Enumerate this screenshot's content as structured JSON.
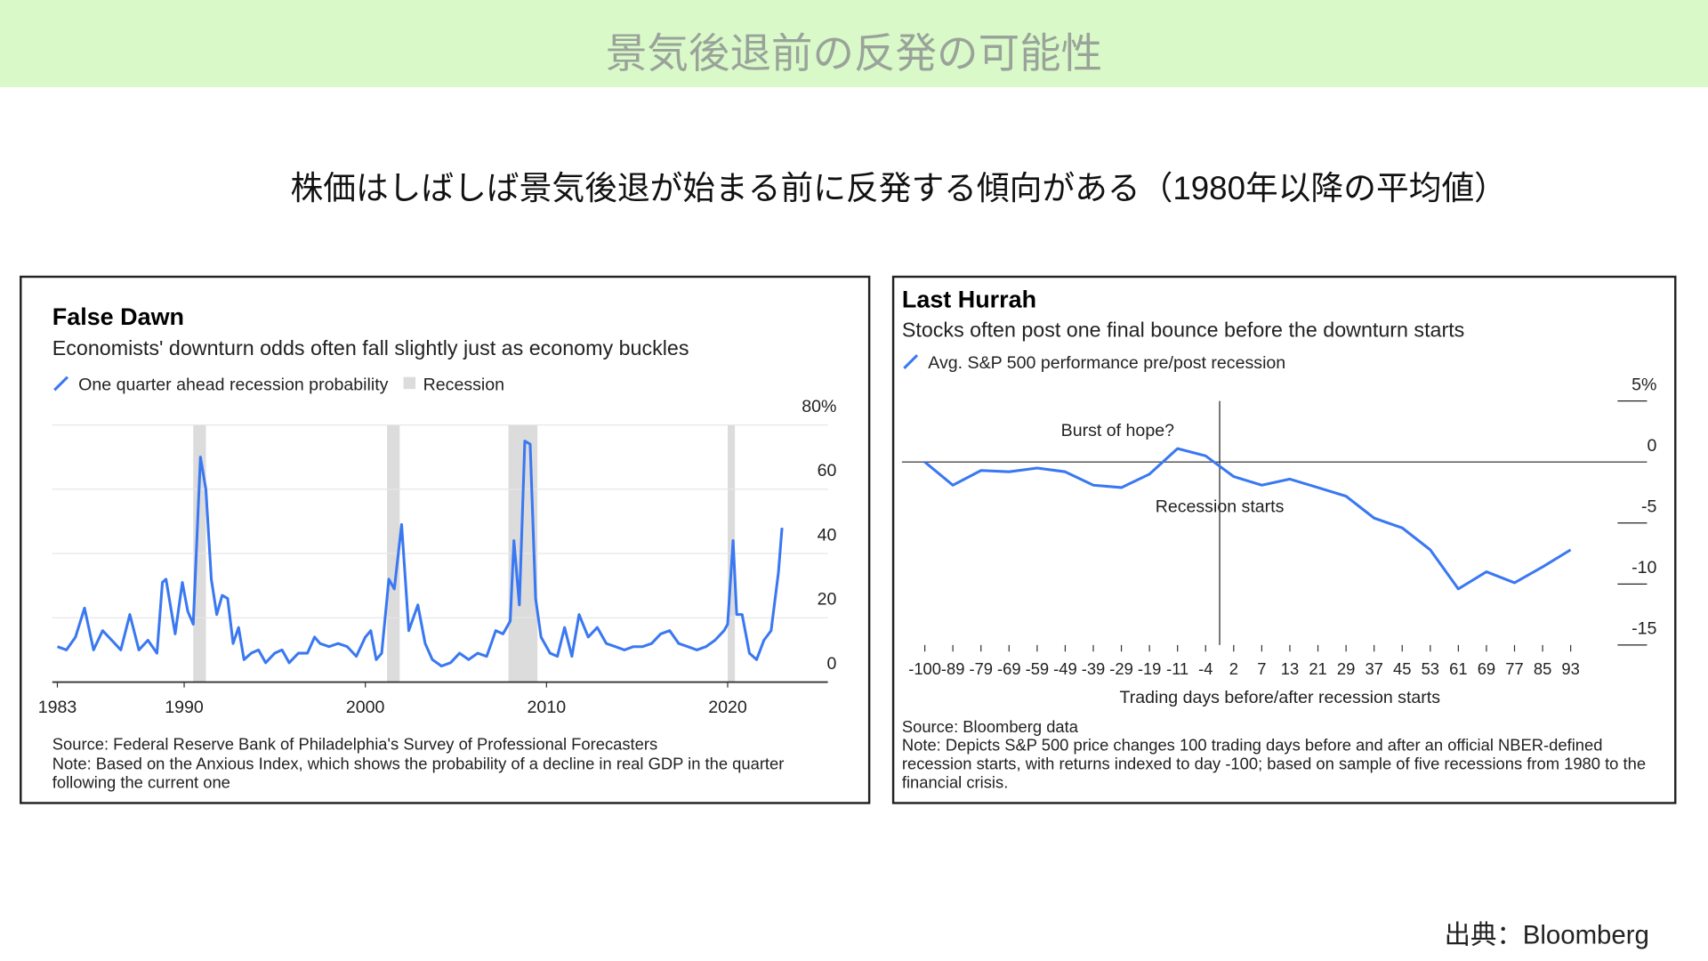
{
  "header": {
    "title": "景気後退前の反発の可能性",
    "subtitle": "株価はしばしば景気後退が始まる前に反発する傾向がある（1980年以降の平均値）",
    "credit": "出典：Bloomberg"
  },
  "chart_data": [
    {
      "type": "line",
      "title": "False Dawn",
      "subtitle": "Economists' downturn odds often fall slightly just as economy buckles",
      "source": "Source: Federal Reserve Bank of Philadelphia's Survey of Professional Forecasters",
      "note": "Note: Based on the Anxious Index, which shows the probability of a decline in real GDP in the quarter following the current one",
      "x": [
        1983,
        1983.5,
        1984,
        1984.5,
        1985,
        1985.5,
        1986,
        1986.5,
        1987,
        1987.5,
        1988,
        1988.5,
        1988.8,
        1989,
        1989.5,
        1989.9,
        1990.2,
        1990.5,
        1990.9,
        1991.2,
        1991.5,
        1991.8,
        1992.1,
        1992.4,
        1992.7,
        1993,
        1993.3,
        1993.7,
        1994.1,
        1994.5,
        1995,
        1995.4,
        1995.8,
        1996.3,
        1996.8,
        1997.2,
        1997.5,
        1998,
        1998.5,
        1999,
        1999.5,
        2000,
        2000.3,
        2000.6,
        2000.9,
        2001.3,
        2001.6,
        2002,
        2002.4,
        2002.9,
        2003.3,
        2003.7,
        2004.2,
        2004.7,
        2005.2,
        2005.7,
        2006.2,
        2006.7,
        2007.2,
        2007.6,
        2008,
        2008.2,
        2008.5,
        2008.8,
        2009.1,
        2009.4,
        2009.7,
        2010.2,
        2010.6,
        2011,
        2011.4,
        2011.8,
        2012.3,
        2012.8,
        2013.3,
        2013.8,
        2014.3,
        2014.8,
        2015.3,
        2015.8,
        2016.3,
        2016.8,
        2017.3,
        2017.8,
        2018.3,
        2018.8,
        2019.3,
        2019.8,
        2020,
        2020.3,
        2020.5,
        2020.8,
        2021.2,
        2021.6,
        2022,
        2022.4,
        2022.8,
        2023
      ],
      "series": [
        {
          "name": "One quarter ahead recession probability",
          "color": "#3a78f2",
          "values": [
            11,
            10,
            14,
            23,
            10,
            16,
            13,
            10,
            21,
            10,
            13,
            9,
            31,
            32,
            15,
            31,
            22,
            18,
            70,
            60,
            32,
            21,
            27,
            26,
            12,
            17,
            7,
            9,
            10,
            6,
            9,
            10,
            6,
            9,
            9,
            14,
            12,
            11,
            12,
            11,
            8,
            14,
            16,
            7,
            9,
            32,
            29,
            49,
            16,
            24,
            12,
            7,
            5,
            6,
            9,
            7,
            9,
            8,
            16,
            15,
            19,
            44,
            24,
            75,
            74,
            26,
            14,
            9,
            8,
            17,
            8,
            21,
            14,
            17,
            12,
            11,
            10,
            11,
            11,
            12,
            15,
            16,
            12,
            11,
            10,
            11,
            13,
            16,
            18,
            44,
            21,
            21,
            9,
            7,
            13,
            16,
            34,
            48
          ]
        }
      ],
      "recessions": {
        "name": "Recession",
        "color": "#dcdcdc",
        "spans": [
          [
            1990.5,
            1991.2
          ],
          [
            2001.2,
            2001.9
          ],
          [
            2007.9,
            2009.5
          ],
          [
            2020,
            2020.4
          ]
        ]
      },
      "xlim": [
        1982.72,
        2025.53
      ],
      "xticks": [
        1983,
        1990,
        2000,
        2010,
        2020
      ],
      "ylim": [
        0,
        80
      ],
      "yticks": [
        0,
        20,
        40,
        60,
        {
          "value": 80,
          "label": "80%"
        }
      ],
      "grid": true
    },
    {
      "type": "line",
      "title": "Last Hurrah",
      "subtitle": "Stocks often post one final bounce before the downturn starts",
      "source": "Source: Bloomberg data",
      "note": "Note: Depicts S&P 500 price changes 100 trading days before and after an official NBER-defined recession starts, with returns indexed to day -100; based on sample of five recessions from 1980 to the financial crisis.",
      "xlabel": "Trading days before/after recession starts",
      "annotations": [
        "Burst of hope?",
        "Recession starts"
      ],
      "categories": [
        "-100",
        "-89",
        "-79",
        "-69",
        "-59",
        "-49",
        "-39",
        "-29",
        "-19",
        "-11",
        "-4",
        "2",
        "7",
        "13",
        "21",
        "29",
        "37",
        "45",
        "53",
        "61",
        "69",
        "77",
        "85",
        "93"
      ],
      "series": [
        {
          "name": "Avg. S&P 500 performance pre/post recession",
          "color": "#3a78f2",
          "values": [
            0,
            -1.9,
            -0.7,
            -0.8,
            -0.5,
            -0.8,
            -1.9,
            -2.1,
            -1,
            1.1,
            0.5,
            -1.2,
            -1.9,
            -1.4,
            -2.1,
            -2.8,
            -4.6,
            -5.4,
            -7.2,
            -10.4,
            -9,
            -9.9,
            -8.6,
            -7.2
          ]
        }
      ],
      "ylim": [
        -15,
        5
      ],
      "yticks": [
        {
          "value": 5,
          "label": "5%"
        },
        0,
        -5,
        -10,
        -15
      ]
    }
  ]
}
